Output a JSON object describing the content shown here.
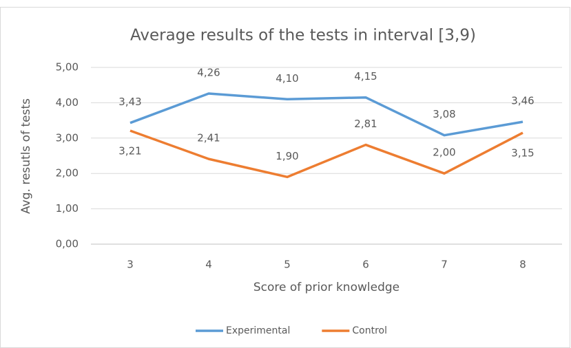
{
  "chart_data": {
    "type": "line",
    "title": "Average results of the tests in interval [3,9)",
    "x_label": "Score of prior knowledge",
    "y_label": "Avg. resutls of tests",
    "categories": [
      "3",
      "4",
      "5",
      "6",
      "7",
      "8"
    ],
    "series": [
      {
        "name": "Experimental",
        "color": "#5b9bd5",
        "values": [
          3.43,
          4.26,
          4.1,
          4.15,
          3.08,
          3.46
        ],
        "value_labels": [
          "3,43",
          "4,26",
          "4,10",
          "4,15",
          "3,08",
          "3,46"
        ]
      },
      {
        "name": "Control",
        "color": "#ed7d31",
        "values": [
          3.21,
          2.41,
          1.9,
          2.81,
          2.0,
          3.15
        ],
        "value_labels": [
          "3,21",
          "2,41",
          "1,90",
          "2,81",
          "2,00",
          "3,15"
        ]
      }
    ],
    "ylim": [
      0,
      5
    ],
    "yticks": [
      {
        "value": 0,
        "label": "0,00"
      },
      {
        "value": 1,
        "label": "1,00"
      },
      {
        "value": 2,
        "label": "2,00"
      },
      {
        "value": 3,
        "label": "3,00"
      },
      {
        "value": 4,
        "label": "4,00"
      },
      {
        "value": 5,
        "label": "5,00"
      }
    ],
    "grid": true,
    "legend": "bottom"
  }
}
